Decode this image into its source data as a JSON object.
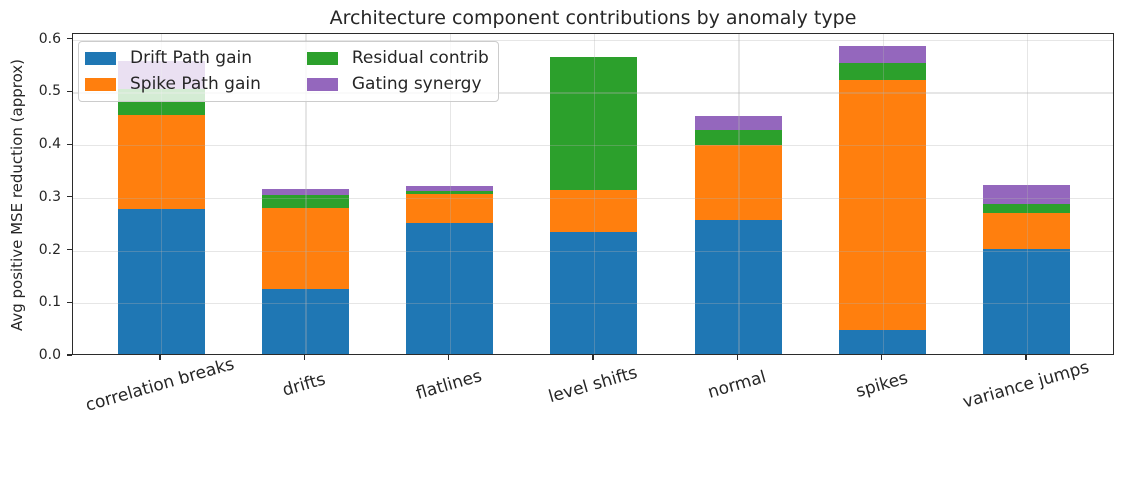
{
  "chart_data": {
    "type": "bar",
    "stacked": true,
    "title": "Architecture component contributions by anomaly type",
    "xlabel": "",
    "ylabel": "Avg positive MSE reduction (approx)",
    "categories": [
      "correlation breaks",
      "drifts",
      "flatlines",
      "level shifts",
      "normal",
      "spikes",
      "variance jumps"
    ],
    "series": [
      {
        "name": "Drift Path gain",
        "color": "#1f77b4",
        "values": [
          0.276,
          0.123,
          0.249,
          0.231,
          0.255,
          0.045,
          0.2
        ]
      },
      {
        "name": "Spike Path gain",
        "color": "#ff7f0e",
        "values": [
          0.178,
          0.154,
          0.054,
          0.08,
          0.141,
          0.475,
          0.067
        ]
      },
      {
        "name": "Residual contrib",
        "color": "#2ca02c",
        "values": [
          0.049,
          0.024,
          0.006,
          0.252,
          0.029,
          0.032,
          0.018
        ]
      },
      {
        "name": "Gating synergy",
        "color": "#9467bd",
        "values": [
          0.053,
          0.013,
          0.01,
          0.0,
          0.027,
          0.032,
          0.035
        ]
      }
    ],
    "totals": [
      0.556,
      0.314,
      0.319,
      0.563,
      0.452,
      0.584,
      0.32
    ],
    "ylim": [
      0,
      0.611
    ],
    "yticks": [
      "0.0",
      "0.1",
      "0.2",
      "0.3",
      "0.4",
      "0.5",
      "0.6"
    ],
    "grid": true,
    "grid_alpha": 0.3,
    "legend_position": "upper left",
    "legend_columns": 2,
    "background_color": "#ffffff",
    "axis_color": "#2b2b2b"
  }
}
